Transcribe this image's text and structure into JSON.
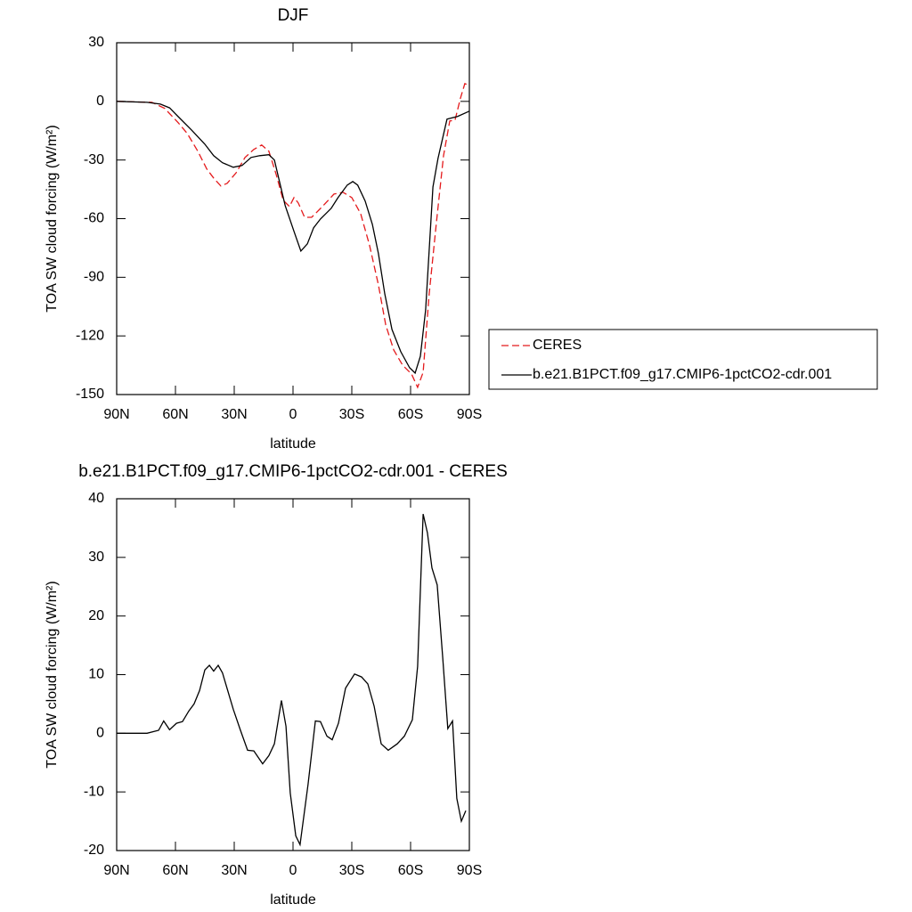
{
  "chart_data": [
    {
      "type": "line",
      "title": "DJF",
      "xlabel": "latitude",
      "ylabel": "TOA SW cloud forcing (W/m²)",
      "xlim": [
        90,
        -90
      ],
      "ylim": [
        -150,
        30
      ],
      "xticks": [
        {
          "value": 90,
          "label": "90N"
        },
        {
          "value": 60,
          "label": "60N"
        },
        {
          "value": 30,
          "label": "30N"
        },
        0,
        {
          "value": -30,
          "label": "30S"
        },
        {
          "value": -60,
          "label": "60S"
        },
        {
          "value": -90,
          "label": "90S"
        }
      ],
      "yticks": [
        -150,
        -120,
        -90,
        -60,
        -30,
        0,
        30
      ],
      "legend": "outside-right",
      "series": [
        {
          "name": "CERES",
          "color": "#e41a1c",
          "dash": true,
          "x": [
            90,
            72,
            65.5,
            58.6,
            54,
            48.6,
            44,
            40.5,
            36.8,
            33.6,
            29,
            24.5,
            20,
            16,
            12.3,
            8.6,
            5,
            1.8,
            -0.5,
            -2.7,
            -5.9,
            -9.5,
            -15,
            -20.9,
            -25.5,
            -30,
            -34.5,
            -39,
            -43.6,
            -47.3,
            -51.4,
            -55.9,
            -60.5,
            -63.6,
            -66.4,
            -69.5,
            -73.2,
            -76.8,
            -80,
            -82.7,
            -85.5,
            -87.7,
            -90
          ],
          "values": [
            0,
            -0.5,
            -3.6,
            -10.9,
            -16.4,
            -25.5,
            -34.6,
            -39.2,
            -43.3,
            -41.9,
            -36.5,
            -28.7,
            -24.6,
            -22.3,
            -25.5,
            -37.4,
            -50.6,
            -53.8,
            -49.2,
            -52,
            -59.3,
            -59.3,
            -53.8,
            -47.4,
            -46.5,
            -49.2,
            -57.4,
            -73.4,
            -93.9,
            -114.4,
            -127.2,
            -134.9,
            -139.5,
            -146.3,
            -138.6,
            -98.4,
            -62,
            -27.8,
            -10,
            -9.6,
            1.8,
            9.1,
            8.2
          ]
        },
        {
          "name": "b.e21.B1PCT.f09_g17.CMIP6-1pctCO2-cdr.001",
          "color": "#000000",
          "dash": false,
          "x": [
            90,
            74.5,
            67.7,
            63,
            58.6,
            51.8,
            45,
            40.5,
            36,
            30.5,
            26,
            21.4,
            17,
            12.3,
            9.5,
            4,
            -0.5,
            -4,
            -7.3,
            -10.5,
            -14,
            -19.5,
            -23,
            -27.7,
            -30.5,
            -33,
            -36.8,
            -40.5,
            -43.6,
            -46.8,
            -50.5,
            -55,
            -59.5,
            -62.3,
            -65,
            -67.7,
            -71.4,
            -74,
            -78.6,
            -84,
            -90
          ],
          "values": [
            0,
            -0.5,
            -1.4,
            -3.3,
            -7.8,
            -14.6,
            -21.9,
            -27.8,
            -31.4,
            -33.7,
            -32.8,
            -28.7,
            -27.8,
            -27.3,
            -30,
            -53.3,
            -66.5,
            -76.6,
            -72.9,
            -64.7,
            -60.2,
            -54.7,
            -49.2,
            -42.8,
            -41,
            -42.8,
            -51,
            -62.9,
            -77.9,
            -98.4,
            -116.7,
            -128.1,
            -136.3,
            -139,
            -130.4,
            -106.7,
            -43.8,
            -29.2,
            -9.1,
            -7.7,
            -5
          ]
        }
      ]
    },
    {
      "type": "line",
      "title": "b.e21.B1PCT.f09_g17.CMIP6-1pctCO2-cdr.001 - CERES",
      "xlabel": "latitude",
      "ylabel": "TOA SW cloud forcing (W/m²)",
      "xlim": [
        90,
        -90
      ],
      "ylim": [
        -20,
        40
      ],
      "xticks": [
        {
          "value": 90,
          "label": "90N"
        },
        {
          "value": 60,
          "label": "60N"
        },
        {
          "value": 30,
          "label": "30N"
        },
        0,
        {
          "value": -30,
          "label": "30S"
        },
        {
          "value": -60,
          "label": "60S"
        },
        {
          "value": -90,
          "label": "90S"
        }
      ],
      "yticks": [
        -20,
        -10,
        0,
        10,
        20,
        30,
        40
      ],
      "series": [
        {
          "color": "#000000",
          "dash": false,
          "x": [
            90,
            74.5,
            68.6,
            66,
            63,
            59.5,
            56.4,
            53.2,
            50.5,
            47.7,
            45,
            42.7,
            40.5,
            38.2,
            36,
            30.5,
            26.8,
            23.2,
            20,
            15.5,
            12.3,
            9.5,
            5.9,
            3.6,
            1.4,
            -1.4,
            -3.6,
            -7.7,
            -11.4,
            -14,
            -17.3,
            -20,
            -23.2,
            -26.8,
            -31.4,
            -35,
            -38.2,
            -41.4,
            -45,
            -48.6,
            -53.2,
            -56.8,
            -60.9,
            -63.6,
            -66.4,
            -68.6,
            -70.9,
            -73.6,
            -76.4,
            -79,
            -81.4,
            -83.6,
            -85.9,
            -88.2
          ],
          "values": [
            0,
            0,
            0.5,
            2.1,
            0.6,
            1.7,
            2,
            3.8,
            5,
            7.3,
            10.8,
            11.6,
            10.6,
            11.6,
            10.3,
            4.1,
            0.5,
            -2.9,
            -3,
            -5.2,
            -3.8,
            -1.8,
            5.6,
            1.2,
            -10.2,
            -17.5,
            -19,
            -8.7,
            2.1,
            2,
            -0.5,
            -1.1,
            1.7,
            7.7,
            10.1,
            9.6,
            8.4,
            4.6,
            -1.8,
            -2.9,
            -1.8,
            -0.5,
            2.3,
            11.4,
            37.4,
            34.2,
            28.2,
            25.3,
            12.9,
            0.8,
            2.1,
            -11.1,
            -15,
            -13.2
          ]
        }
      ]
    }
  ]
}
